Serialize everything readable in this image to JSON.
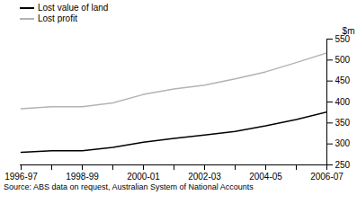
{
  "chart_data": {
    "type": "line",
    "categories": [
      "1996-97",
      null,
      "1998-99",
      null,
      "2000-01",
      null,
      "2002-03",
      null,
      "2004-05",
      null,
      "2006-07"
    ],
    "series": [
      {
        "name": "Lost value of land",
        "color": "#000000",
        "values": [
          280,
          284,
          284,
          292,
          304,
          313,
          321,
          330,
          343,
          358,
          376
        ]
      },
      {
        "name": "Lost profit",
        "color": "#b3b3b3",
        "values": [
          384,
          389,
          389,
          398,
          418,
          431,
          440,
          455,
          472,
          494,
          517
        ]
      }
    ],
    "ylabel": "$m",
    "ylim": [
      250,
      550
    ],
    "yticks": [
      250,
      300,
      350,
      400,
      450,
      500,
      550
    ],
    "grid": false,
    "legend": "top-left",
    "caption": "Source: ABS data on request, Australian System of National Accounts"
  }
}
